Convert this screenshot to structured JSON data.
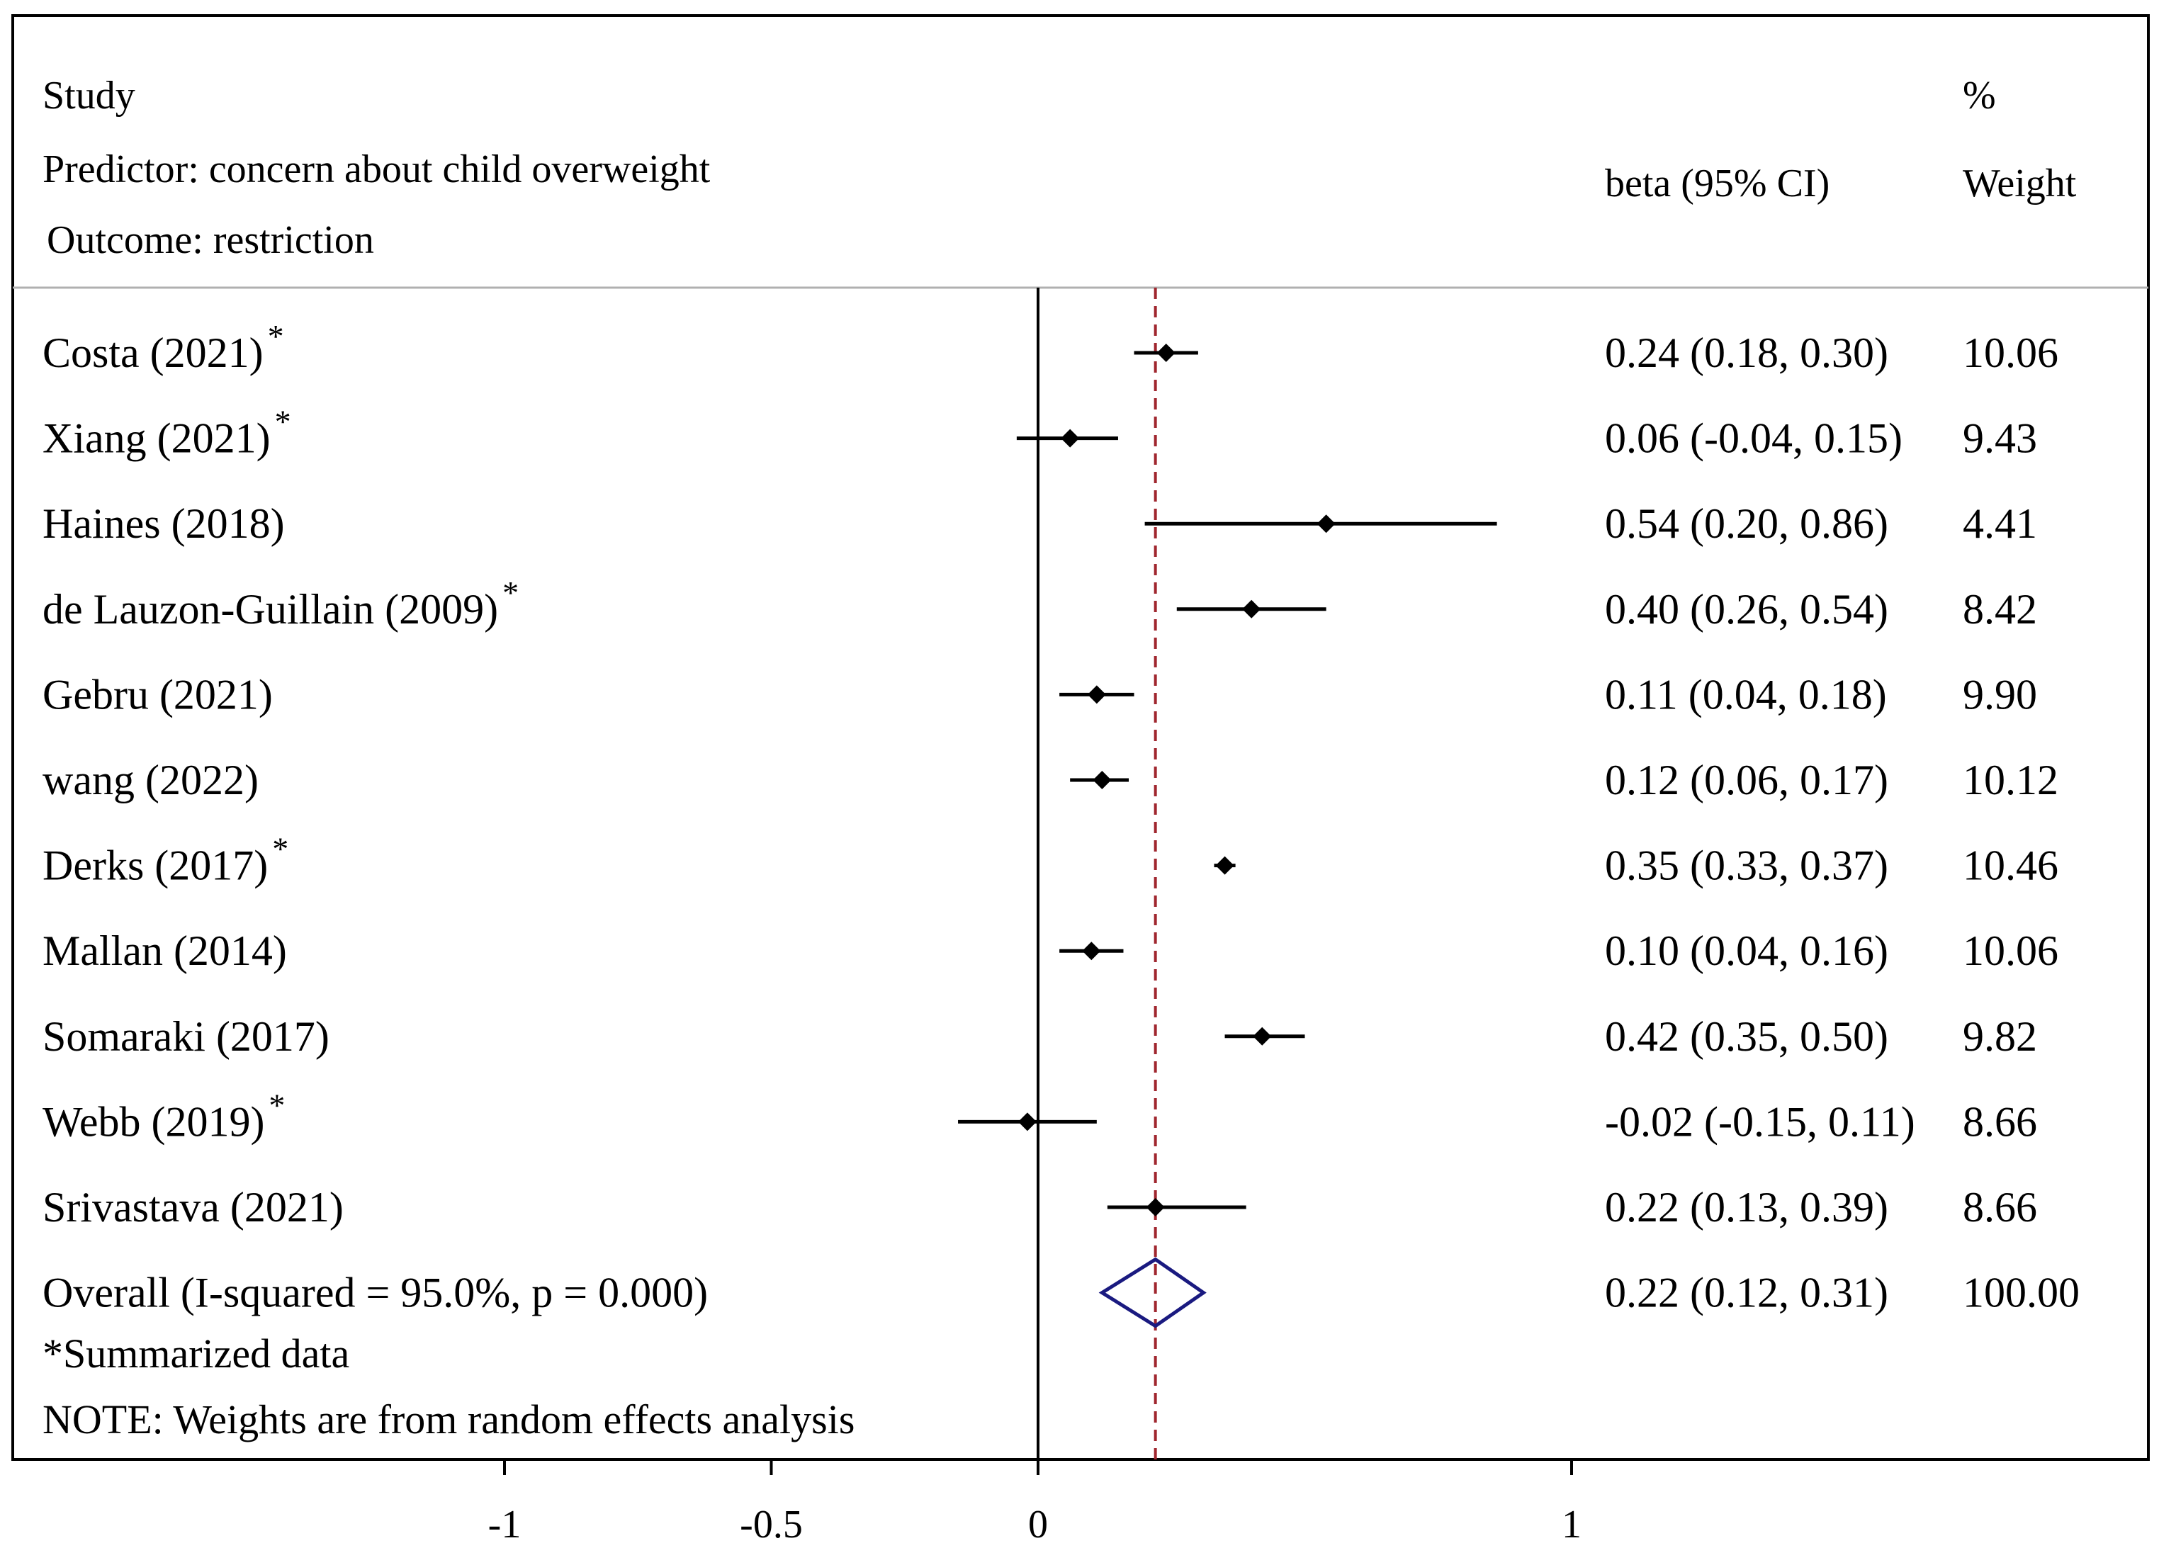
{
  "chart_data": {
    "type": "forest",
    "header": {
      "study_label": "Study",
      "predictor": "Predictor: concern about child overweight",
      "outcome": "Outcome: restriction",
      "effect_label": "beta (95% CI)",
      "weight_label_1": "%",
      "weight_label_2": "Weight"
    },
    "studies": [
      {
        "name": "Costa (2021)",
        "marker": "*",
        "beta": 0.24,
        "lo": 0.18,
        "hi": 0.3,
        "ci_text": "0.24 (0.18, 0.30)",
        "weight": "10.06"
      },
      {
        "name": "Xiang (2021)",
        "marker": "*",
        "beta": 0.06,
        "lo": -0.04,
        "hi": 0.15,
        "ci_text": "0.06 (-0.04, 0.15)",
        "weight": "9.43"
      },
      {
        "name": "Haines (2018)",
        "marker": "",
        "beta": 0.54,
        "lo": 0.2,
        "hi": 0.86,
        "ci_text": "0.54 (0.20, 0.86)",
        "weight": "4.41"
      },
      {
        "name": "de Lauzon-Guillain (2009)",
        "marker": "*",
        "beta": 0.4,
        "lo": 0.26,
        "hi": 0.54,
        "ci_text": "0.40 (0.26, 0.54)",
        "weight": "8.42"
      },
      {
        "name": "Gebru (2021)",
        "marker": "",
        "beta": 0.11,
        "lo": 0.04,
        "hi": 0.18,
        "ci_text": "0.11 (0.04, 0.18)",
        "weight": "9.90"
      },
      {
        "name": "wang (2022)",
        "marker": "",
        "beta": 0.12,
        "lo": 0.06,
        "hi": 0.17,
        "ci_text": "0.12 (0.06, 0.17)",
        "weight": "10.12"
      },
      {
        "name": "Derks (2017)",
        "marker": "*",
        "beta": 0.35,
        "lo": 0.33,
        "hi": 0.37,
        "ci_text": "0.35 (0.33, 0.37)",
        "weight": "10.46"
      },
      {
        "name": "Mallan (2014)",
        "marker": "",
        "beta": 0.1,
        "lo": 0.04,
        "hi": 0.16,
        "ci_text": "0.10 (0.04, 0.16)",
        "weight": "10.06"
      },
      {
        "name": "Somaraki (2017)",
        "marker": "",
        "beta": 0.42,
        "lo": 0.35,
        "hi": 0.5,
        "ci_text": "0.42 (0.35, 0.50)",
        "weight": "9.82"
      },
      {
        "name": "Webb (2019)",
        "marker": "*",
        "beta": -0.02,
        "lo": -0.15,
        "hi": 0.11,
        "ci_text": "-0.02 (-0.15, 0.11)",
        "weight": "8.66"
      },
      {
        "name": "Srivastava (2021)",
        "marker": "",
        "beta": 0.22,
        "lo": 0.13,
        "hi": 0.39,
        "ci_text": "0.22 (0.13, 0.39)",
        "weight": "8.66"
      }
    ],
    "overall": {
      "label": "Overall  (I-squared = 95.0%, p = 0.000)",
      "beta": 0.22,
      "lo": 0.12,
      "hi": 0.31,
      "ci_text": "0.22 (0.12, 0.31)",
      "weight": "100.00"
    },
    "footnote_summarized": "*Summarized data",
    "footnote_weights": "NOTE: Weights are from random effects analysis",
    "x_ticks": [
      {
        "value": -1,
        "label": "-1"
      },
      {
        "value": -0.5,
        "label": "-0.5"
      },
      {
        "value": 0,
        "label": "0"
      },
      {
        "value": 1,
        "label": "1"
      }
    ],
    "null_line": 0,
    "reference_line": 0.22,
    "colors": {
      "frame": "#000000",
      "markers": "#000000",
      "reference_line": "#a0262e",
      "diamond": "#1a1a80",
      "header_rule": "#b0b0b0"
    }
  }
}
